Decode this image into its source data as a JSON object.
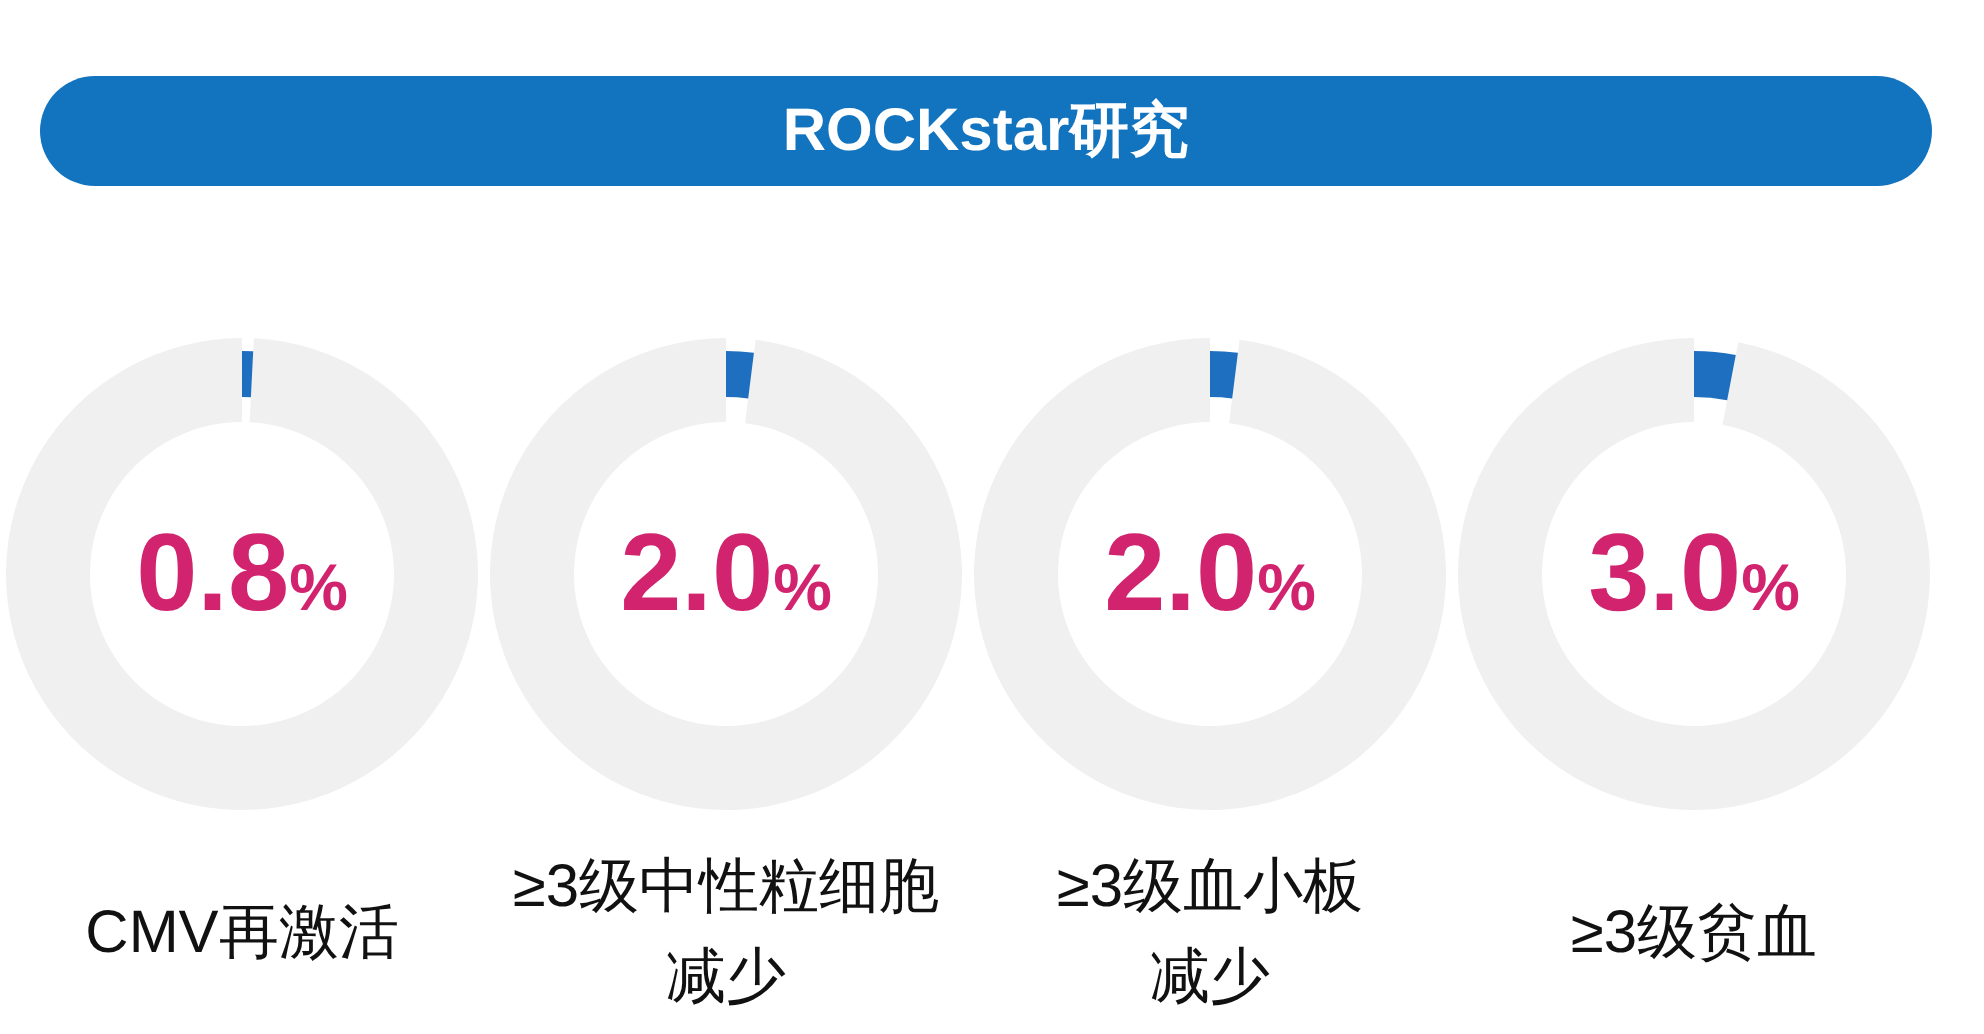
{
  "chart_data": [
    {
      "type": "other",
      "title": "ROCKstar研究"
    },
    {
      "type": "donut",
      "xlabel": "CMV再激活",
      "categories": [
        null,
        null
      ],
      "values": [
        0.8,
        99.2
      ],
      "colors": [
        "#1f6fc0",
        "#f0f0f0"
      ],
      "value_labels": [
        "0.8%",
        null
      ]
    },
    {
      "type": "donut",
      "xlabel": "≥3级中性粒细胞减少",
      "categories": [
        null,
        null
      ],
      "values": [
        2.0,
        98.0
      ],
      "colors": [
        "#1f6fc0",
        "#f0f0f0"
      ],
      "value_labels": [
        "2.0%",
        null
      ]
    },
    {
      "type": "donut",
      "xlabel": "≥3级血小板减少",
      "categories": [
        null,
        null
      ],
      "values": [
        2.0,
        98.0
      ],
      "colors": [
        "#1f6fc0",
        "#f0f0f0"
      ],
      "value_labels": [
        "2.0%",
        null
      ]
    },
    {
      "type": "donut",
      "xlabel": "≥3级贫血",
      "categories": [
        null,
        null
      ],
      "values": [
        3.0,
        97.0
      ],
      "colors": [
        "#1f6fc0",
        "#f0f0f0"
      ],
      "value_labels": [
        "3.0%",
        null
      ]
    }
  ]
}
